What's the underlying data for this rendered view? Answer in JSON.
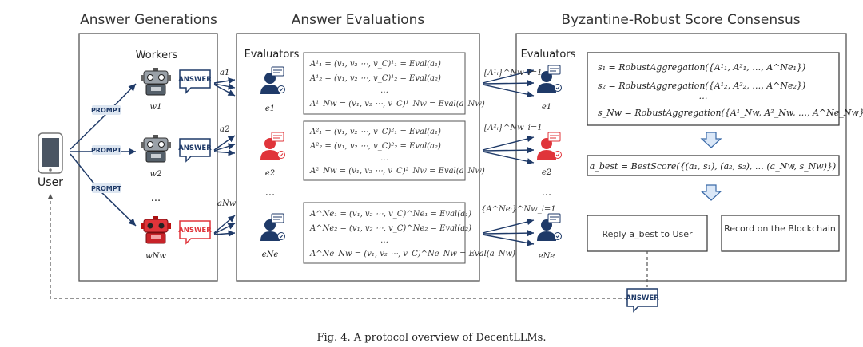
{
  "panels": {
    "generation_title": "Answer Generations",
    "evaluation_title": "Answer Evaluations",
    "consensus_title": "Byzantine-Robust Score Consensus"
  },
  "user_label": "User",
  "prompt_tag": "PROMPT",
  "answer_tag": "ANSWER",
  "workers": {
    "heading": "Workers",
    "labels": [
      "w1",
      "w2",
      "wNw"
    ],
    "answer_arrows": [
      "a1",
      "a2",
      "aNw"
    ],
    "ellipsis": "..."
  },
  "evaluators_heading": "Evaluators",
  "evaluators": {
    "labels": [
      "e1",
      "e2",
      "eNe"
    ],
    "ellipsis": "..."
  },
  "eval_boxes": [
    {
      "lines": [
        "A¹₁ = (v₁, v₂ ⋯, v_C)¹₁ = Eval(a₁)",
        "A¹₂ = (v₁, v₂ ⋯, v_C)¹₂ = Eval(a₂)",
        "…",
        "A¹_Nw = (v₁, v₂ ⋯, v_C)¹_Nw = Eval(a_Nw)"
      ]
    },
    {
      "lines": [
        "A²₁ = (v₁, v₂ ⋯, v_C)²₁ = Eval(a₁)",
        "A²₂ = (v₁, v₂ ⋯, v_C)²₂ = Eval(a₂)",
        "…",
        "A²_Nw = (v₁, v₂ ⋯, v_C)²_Nw = Eval(a_Nw)"
      ]
    },
    {
      "lines": [
        "A^Ne₁ = (v₁, v₂ ⋯, v_C)^Ne₁ = Eval(a₁)",
        "A^Ne₂ = (v₁, v₂ ⋯, v_C)^Ne₂ = Eval(a₂)",
        "…",
        "A^Ne_Nw = (v₁, v₂ ⋯, v_C)^Ne_Nw = Eval(a_Nw)"
      ]
    }
  ],
  "broadcast_labels": [
    "{A¹ᵢ}^Nw_i=1",
    "{A²ᵢ}^Nw_i=1",
    "{A^Neᵢ}^Nw_i=1"
  ],
  "consensus": {
    "aggregation_lines": [
      "s₁ = RobustAggregation({A¹₁, A²₁, …, A^Ne₁})",
      "s₂ = RobustAggregation({A¹₂, A²₂, …, A^Ne₂})",
      "…",
      "s_Nw = RobustAggregation({A¹_Nw, A²_Nw, …, A^Ne_Nw})"
    ],
    "best_score_line": "a_best = BestScore({(a₁, s₁), (a₂, s₂), … (a_Nw, s_Nw)})",
    "reply_label": "Reply a_best to User",
    "record_label": "Record on the Blockchain"
  },
  "caption": "Fig. 4.  A protocol overview of DecentLLMs.",
  "colors": {
    "navy": "#1f3a68",
    "malicious_red": "#e0343a",
    "panel_border": "#555555",
    "arrow_fill": "#dbe8f8",
    "arrow_stroke": "#3b6aa8"
  }
}
